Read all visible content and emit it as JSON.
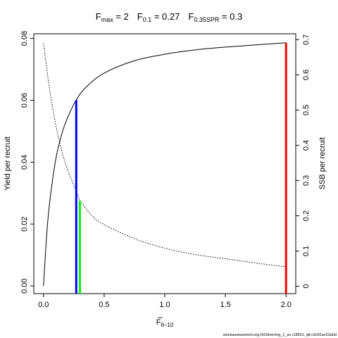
{
  "title": {
    "fmax_main": "F",
    "fmax_sub": "max",
    "fmax_value": " = 2",
    "f01_main": "F",
    "f01_sub": "0.1",
    "f01_value": " = 0.27",
    "fspr_main": "F",
    "fspr_sub": "0.35SPR",
    "fspr_value": " = 0.3"
  },
  "xlabel_main": "F",
  "xlabel_sub": "6–10",
  "footer": "stockassessment.org,NSSherring_1_sn,r18651, git:c9c81ac53a0d",
  "chart_data": {
    "type": "line",
    "xlim": [
      -0.08,
      2.08
    ],
    "ylim_left": [
      -0.0025,
      0.0815
    ],
    "ylim_right": [
      -0.021,
      0.7165
    ],
    "x_ticks": [
      "0.0",
      "0.5",
      "1.0",
      "1.5",
      "2.0"
    ],
    "x_tick_values": [
      0,
      0.5,
      1.0,
      1.5,
      2.0
    ],
    "y_left_ticks": [
      "0.00",
      "0.02",
      "0.04",
      "0.06",
      "0.08"
    ],
    "y_left_tick_values": [
      0,
      0.02,
      0.04,
      0.06,
      0.08
    ],
    "y_right_ticks": [
      "0",
      "0.1",
      "0.2",
      "0.3",
      "0.4",
      "0.5",
      "0.6",
      "0.7"
    ],
    "y_right_tick_values": [
      0,
      0.1,
      0.2,
      0.3,
      0.4,
      0.5,
      0.6,
      0.7
    ],
    "ylabel_left": "Yield per recruit",
    "ylabel_right": "SSB per recruit",
    "grid": false,
    "series": [
      {
        "axis": "left",
        "style": "solid",
        "color": "#000000",
        "x": [
          0,
          0.025,
          0.05,
          0.1,
          0.15,
          0.2,
          0.27,
          0.35,
          0.5,
          0.75,
          1.0,
          1.25,
          1.5,
          1.75,
          2.0
        ],
        "y": [
          0,
          0.0158,
          0.0267,
          0.0407,
          0.049,
          0.0545,
          0.0601,
          0.0642,
          0.0688,
          0.0728,
          0.0749,
          0.0763,
          0.0772,
          0.0779,
          0.0786
        ]
      },
      {
        "axis": "right",
        "style": "dotted",
        "color": "#000000",
        "x": [
          0,
          0.05,
          0.1,
          0.15,
          0.2,
          0.27,
          0.3,
          0.4,
          0.5,
          0.75,
          1.0,
          1.25,
          1.5,
          1.75,
          2.0
        ],
        "y": [
          0.69,
          0.56,
          0.46,
          0.385,
          0.33,
          0.27,
          0.245,
          0.2,
          0.175,
          0.135,
          0.108,
          0.09,
          0.078,
          0.066,
          0.055
        ]
      }
    ],
    "reference_lines": [
      {
        "x": 0.27,
        "y": 0.0601,
        "axis": "left",
        "color": "#0000ff",
        "label": "F0.1"
      },
      {
        "x": 0.3,
        "y": 0.243,
        "axis": "right",
        "color": "#00ff00",
        "label": "F0.35SPR"
      },
      {
        "x": 2.0,
        "y": 0.0786,
        "axis": "left",
        "color": "#ff0000",
        "label": "Fmax"
      }
    ]
  }
}
